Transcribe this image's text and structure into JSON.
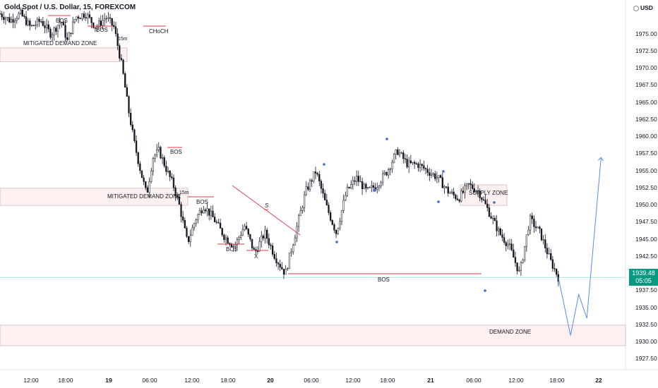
{
  "header": {
    "symbol_title": "Gold Spot / U.S. Dollar, 15, FOREXCOM"
  },
  "currency": "USD",
  "price_axis": {
    "labels": [
      "1975.00",
      "1972.50",
      "1970.00",
      "1967.50",
      "1965.00",
      "1962.50",
      "1960.00",
      "1957.50",
      "1955.00",
      "1952.50",
      "1950.00",
      "1947.50",
      "1945.00",
      "1942.50",
      "1937.50",
      "1935.00",
      "1932.50",
      "1930.00",
      "1927.50"
    ],
    "current_price": "1939.48",
    "countdown": "05:05",
    "current_color": "#089981"
  },
  "time_axis": {
    "labels": [
      {
        "text": "12:00",
        "bold": false
      },
      {
        "text": "18:00",
        "bold": false
      },
      {
        "text": "19",
        "bold": true
      },
      {
        "text": "06:00",
        "bold": false
      },
      {
        "text": "12:00",
        "bold": false
      },
      {
        "text": "18:00",
        "bold": false
      },
      {
        "text": "20",
        "bold": true
      },
      {
        "text": "06:00",
        "bold": false
      },
      {
        "text": "12:00",
        "bold": false
      },
      {
        "text": "18:00",
        "bold": false
      },
      {
        "text": "21",
        "bold": true
      },
      {
        "text": "06:00",
        "bold": false
      },
      {
        "text": "12:00",
        "bold": false
      },
      {
        "text": "18:00",
        "bold": false
      },
      {
        "text": "22",
        "bold": true
      }
    ]
  },
  "annotations": {
    "mitigated_zone_1": "MITIGATED DEMAND ZONE",
    "mitigated_zone_2": "MITIGATED DEMAND ZONE",
    "supply_zone": "SUPPLY ZONE",
    "demand_zone": "DEMAND ZONE",
    "bos_1": "BOS",
    "bos_2": "BOS",
    "bos_3": "BOS",
    "bos_4": "BOS",
    "bos_5": "BOS",
    "bos_6": "BOS",
    "choch": "CHoCH",
    "tag_15m_1": "15m",
    "tag_15m_2": "15m",
    "x_label": "X",
    "s_label": "S"
  },
  "colors": {
    "bull": "#131722",
    "bear": "#131722",
    "bos_line": "#e0384a",
    "projection": "#5b8de0",
    "demand_fill": "#fdf0f0",
    "supply_fill": "#fdf0f0",
    "pivot_dot": "#3a6ad8"
  },
  "chart_data": {
    "type": "candlestick",
    "symbol": "Gold Spot / U.S. Dollar",
    "timeframe": "15",
    "close_path": [
      [
        0,
        1978
      ],
      [
        0.05,
        1977
      ],
      [
        0.1,
        1978
      ],
      [
        0.15,
        1976
      ],
      [
        0.2,
        1977
      ],
      [
        0.25,
        1975
      ],
      [
        0.3,
        1977
      ],
      [
        0.33,
        1974
      ],
      [
        0.37,
        1977.5
      ],
      [
        0.42,
        1978
      ],
      [
        0.47,
        1976
      ],
      [
        0.52,
        1977.5
      ],
      [
        0.56,
        1976
      ],
      [
        0.6,
        1970
      ],
      [
        0.63,
        1964
      ],
      [
        0.66,
        1959
      ],
      [
        0.69,
        1955
      ],
      [
        0.72,
        1951.5
      ],
      [
        0.75,
        1957
      ],
      [
        0.78,
        1958
      ],
      [
        0.82,
        1955
      ],
      [
        0.85,
        1953
      ],
      [
        0.88,
        1950
      ],
      [
        0.92,
        1944.5
      ],
      [
        0.96,
        1948
      ],
      [
        1.0,
        1950
      ],
      [
        1.05,
        1948
      ],
      [
        1.1,
        1945.5
      ],
      [
        1.15,
        1944
      ],
      [
        1.2,
        1947
      ],
      [
        1.25,
        1943
      ],
      [
        1.3,
        1946
      ],
      [
        1.35,
        1942.5
      ],
      [
        1.4,
        1940
      ],
      [
        1.45,
        1946
      ],
      [
        1.5,
        1952
      ],
      [
        1.55,
        1955
      ],
      [
        1.6,
        1950
      ],
      [
        1.65,
        1946
      ],
      [
        1.7,
        1952
      ],
      [
        1.75,
        1954
      ],
      [
        1.8,
        1952
      ],
      [
        1.85,
        1953
      ],
      [
        1.9,
        1955
      ],
      [
        1.95,
        1958
      ],
      [
        2.0,
        1956
      ],
      [
        2.05,
        1956
      ],
      [
        2.1,
        1955
      ],
      [
        2.15,
        1954
      ],
      [
        2.2,
        1952
      ],
      [
        2.25,
        1951
      ],
      [
        2.3,
        1953
      ],
      [
        2.35,
        1952
      ],
      [
        2.4,
        1949
      ],
      [
        2.45,
        1946
      ],
      [
        2.5,
        1944
      ],
      [
        2.55,
        1940
      ],
      [
        2.6,
        1948
      ],
      [
        2.65,
        1946
      ],
      [
        2.7,
        1942
      ],
      [
        2.74,
        1939.5
      ]
    ],
    "projection": [
      [
        2.74,
        1939.5
      ],
      [
        2.8,
        1931
      ],
      [
        2.84,
        1937
      ],
      [
        2.88,
        1933.5
      ],
      [
        2.95,
        1957
      ]
    ],
    "ylim": [
      1926,
      1980
    ],
    "zones": [
      {
        "name": "SUPPLY ZONE",
        "top": 1953,
        "bottom": 1950
      },
      {
        "name": "DEMAND ZONE",
        "top": 1932.5,
        "bottom": 1929.5
      },
      {
        "name": "MITIGATED DEMAND ZONE",
        "top": 1971,
        "bottom": 1973
      },
      {
        "name": "MITIGATED DEMAND ZONE",
        "top": 1952.5,
        "bottom": 1950
      }
    ],
    "current_price": 1939.48
  }
}
